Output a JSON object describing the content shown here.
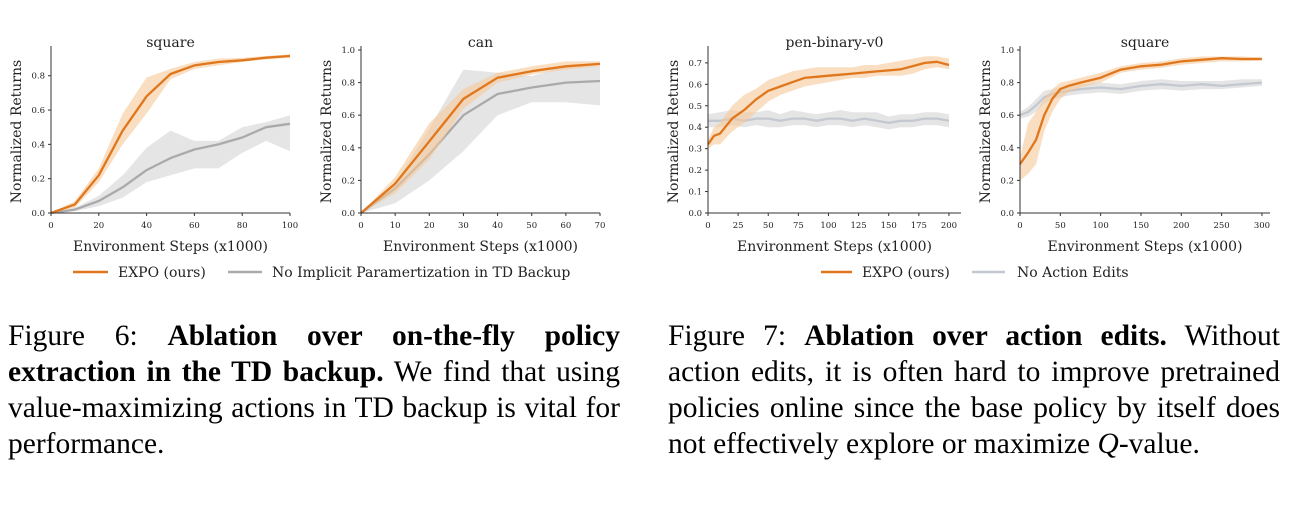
{
  "colors": {
    "expo": "#e0771d",
    "expo_band": "#f5c89a",
    "ablation": "#aaaaaa",
    "ablation_band": "#dcdcdc",
    "ablation7": "#c4c8d0"
  },
  "figure6": {
    "legend": {
      "expo": "EXPO (ours)",
      "ablation": "No Implicit Paramertization in TD Backup"
    },
    "caption": {
      "label": "Figure 6:",
      "bold": "Ablation over on-the-fly policy extraction in the TD backup.",
      "text": "We find that using value-maximizing actions in TD backup is vital for performance."
    }
  },
  "figure7": {
    "legend": {
      "expo": "EXPO (ours)",
      "ablation": "No Action Edits"
    },
    "caption": {
      "label": "Figure 7:",
      "bold": "Ablation over action edits.",
      "text": "Without action edits, it is often hard to improve pretrained policies online since the base policy by itself does not effectively explore or maximize",
      "q": "Q",
      "tail": "-value."
    }
  },
  "chart_data": [
    {
      "type": "line",
      "title": "square",
      "xlabel": "Environment Steps (x1000)",
      "ylabel": "Normalized Returns",
      "xlim": [
        0,
        100
      ],
      "ylim": [
        0,
        0.95
      ],
      "xticks": [
        0,
        20,
        40,
        60,
        80,
        100
      ],
      "xtick_labels": [
        "0",
        "20",
        "40",
        "60",
        "80",
        "100"
      ],
      "yticks": [
        0,
        0.2,
        0.4,
        0.6,
        0.8
      ],
      "ytick_labels": [
        "0.0",
        "0.2",
        "0.4",
        "0.6",
        "0.8"
      ],
      "series": [
        {
          "name": "EXPO (ours)",
          "x": [
            0,
            10,
            20,
            30,
            40,
            50,
            60,
            70,
            80,
            90,
            100
          ],
          "y": [
            0.0,
            0.05,
            0.22,
            0.48,
            0.68,
            0.81,
            0.86,
            0.88,
            0.89,
            0.905,
            0.915
          ],
          "upper": [
            0.0,
            0.07,
            0.26,
            0.58,
            0.79,
            0.84,
            0.88,
            0.9,
            0.905,
            0.915,
            0.925
          ],
          "lower": [
            0.0,
            0.03,
            0.18,
            0.4,
            0.58,
            0.78,
            0.84,
            0.86,
            0.88,
            0.895,
            0.905
          ]
        },
        {
          "name": "No Implicit Paramertization in TD Backup",
          "x": [
            0,
            10,
            20,
            30,
            40,
            50,
            60,
            70,
            80,
            90,
            100
          ],
          "y": [
            0.0,
            0.02,
            0.07,
            0.15,
            0.25,
            0.32,
            0.37,
            0.4,
            0.44,
            0.5,
            0.52
          ],
          "upper": [
            0.0,
            0.03,
            0.1,
            0.22,
            0.38,
            0.48,
            0.42,
            0.42,
            0.5,
            0.53,
            0.57
          ],
          "lower": [
            0.0,
            0.01,
            0.04,
            0.09,
            0.18,
            0.22,
            0.26,
            0.26,
            0.35,
            0.42,
            0.36
          ]
        }
      ]
    },
    {
      "type": "line",
      "title": "can",
      "xlabel": "Environment Steps (x1000)",
      "ylabel": "Normalized Returns",
      "xlim": [
        0,
        70
      ],
      "ylim": [
        0,
        1.0
      ],
      "xticks": [
        0,
        10,
        20,
        30,
        40,
        50,
        60,
        70
      ],
      "xtick_labels": [
        "0",
        "10",
        "20",
        "30",
        "40",
        "50",
        "60",
        "70"
      ],
      "yticks": [
        0,
        0.2,
        0.4,
        0.6,
        0.8,
        1.0
      ],
      "ytick_labels": [
        "0.0",
        "0.2",
        "0.4",
        "0.6",
        "0.8",
        "1.0"
      ],
      "series": [
        {
          "name": "EXPO (ours)",
          "x": [
            0,
            10,
            20,
            30,
            40,
            50,
            60,
            70
          ],
          "y": [
            0.0,
            0.18,
            0.44,
            0.7,
            0.83,
            0.87,
            0.9,
            0.915
          ],
          "upper": [
            0.0,
            0.22,
            0.55,
            0.76,
            0.86,
            0.9,
            0.93,
            0.93
          ],
          "lower": [
            0.0,
            0.12,
            0.33,
            0.64,
            0.8,
            0.85,
            0.88,
            0.9
          ]
        },
        {
          "name": "No Implicit Paramertization in TD Backup",
          "x": [
            0,
            10,
            20,
            30,
            40,
            50,
            60,
            70
          ],
          "y": [
            0.0,
            0.15,
            0.36,
            0.6,
            0.73,
            0.77,
            0.8,
            0.81
          ],
          "upper": [
            0.0,
            0.18,
            0.52,
            0.88,
            0.86,
            0.84,
            0.9,
            0.9
          ],
          "lower": [
            0.0,
            0.06,
            0.2,
            0.38,
            0.6,
            0.68,
            0.68,
            0.66
          ]
        }
      ]
    },
    {
      "type": "line",
      "title": "pen-binary-v0",
      "xlabel": "Environment Steps (x1000)",
      "ylabel": "Normalized Returns",
      "xlim": [
        0,
        210
      ],
      "ylim": [
        0,
        0.76
      ],
      "xticks": [
        0,
        25,
        50,
        75,
        100,
        125,
        150,
        175,
        200
      ],
      "xtick_labels": [
        "0",
        "25",
        "50",
        "75",
        "100",
        "125",
        "150",
        "175",
        "200"
      ],
      "yticks": [
        0,
        0.1,
        0.2,
        0.3,
        0.4,
        0.5,
        0.6,
        0.7
      ],
      "ytick_labels": [
        "0.0",
        "0.1",
        "0.2",
        "0.3",
        "0.4",
        "0.5",
        "0.6",
        "0.7"
      ],
      "series": [
        {
          "name": "EXPO (ours)",
          "x": [
            0,
            5,
            10,
            20,
            30,
            40,
            50,
            60,
            70,
            80,
            90,
            100,
            110,
            120,
            130,
            140,
            150,
            160,
            170,
            180,
            190,
            200
          ],
          "y": [
            0.32,
            0.36,
            0.37,
            0.44,
            0.48,
            0.53,
            0.57,
            0.59,
            0.61,
            0.63,
            0.635,
            0.64,
            0.645,
            0.65,
            0.655,
            0.66,
            0.665,
            0.67,
            0.685,
            0.7,
            0.705,
            0.69
          ],
          "upper": [
            0.34,
            0.4,
            0.42,
            0.5,
            0.55,
            0.58,
            0.62,
            0.64,
            0.66,
            0.67,
            0.68,
            0.68,
            0.68,
            0.68,
            0.69,
            0.69,
            0.7,
            0.71,
            0.72,
            0.73,
            0.73,
            0.72
          ],
          "lower": [
            0.3,
            0.32,
            0.32,
            0.38,
            0.42,
            0.47,
            0.52,
            0.55,
            0.57,
            0.59,
            0.6,
            0.61,
            0.62,
            0.63,
            0.63,
            0.64,
            0.64,
            0.64,
            0.65,
            0.67,
            0.68,
            0.67
          ]
        },
        {
          "name": "No Action Edits",
          "x": [
            0,
            10,
            20,
            30,
            40,
            50,
            60,
            70,
            80,
            90,
            100,
            110,
            120,
            130,
            140,
            150,
            160,
            170,
            180,
            190,
            200
          ],
          "y": [
            0.43,
            0.43,
            0.44,
            0.43,
            0.44,
            0.44,
            0.43,
            0.44,
            0.44,
            0.43,
            0.44,
            0.44,
            0.43,
            0.44,
            0.43,
            0.42,
            0.43,
            0.43,
            0.44,
            0.44,
            0.43
          ],
          "upper": [
            0.46,
            0.47,
            0.48,
            0.47,
            0.47,
            0.48,
            0.46,
            0.48,
            0.47,
            0.46,
            0.47,
            0.48,
            0.47,
            0.47,
            0.47,
            0.45,
            0.46,
            0.46,
            0.47,
            0.47,
            0.46
          ],
          "lower": [
            0.4,
            0.4,
            0.41,
            0.4,
            0.41,
            0.4,
            0.4,
            0.41,
            0.41,
            0.4,
            0.41,
            0.41,
            0.4,
            0.41,
            0.4,
            0.39,
            0.4,
            0.4,
            0.41,
            0.41,
            0.4
          ]
        }
      ]
    },
    {
      "type": "line",
      "title": "square",
      "xlabel": "Environment Steps (x1000)",
      "ylabel": "Normalized Returns",
      "xlim": [
        0,
        310
      ],
      "ylim": [
        0,
        1.0
      ],
      "xticks": [
        0,
        50,
        100,
        150,
        200,
        250,
        300
      ],
      "xtick_labels": [
        "0",
        "50",
        "100",
        "150",
        "200",
        "250",
        "300"
      ],
      "yticks": [
        0,
        0.2,
        0.4,
        0.6,
        0.8,
        1.0
      ],
      "ytick_labels": [
        "0.0",
        "0.2",
        "0.4",
        "0.6",
        "0.8",
        "1.0"
      ],
      "series": [
        {
          "name": "EXPO (ours)",
          "x": [
            0,
            10,
            20,
            30,
            40,
            50,
            60,
            75,
            100,
            125,
            150,
            175,
            200,
            225,
            250,
            275,
            300
          ],
          "y": [
            0.3,
            0.37,
            0.45,
            0.6,
            0.7,
            0.76,
            0.78,
            0.8,
            0.83,
            0.88,
            0.9,
            0.91,
            0.93,
            0.94,
            0.95,
            0.945,
            0.945
          ],
          "upper": [
            0.34,
            0.55,
            0.62,
            0.7,
            0.76,
            0.8,
            0.81,
            0.83,
            0.86,
            0.9,
            0.92,
            0.93,
            0.95,
            0.96,
            0.96,
            0.96,
            0.955
          ],
          "lower": [
            0.2,
            0.24,
            0.3,
            0.5,
            0.62,
            0.7,
            0.74,
            0.77,
            0.8,
            0.86,
            0.88,
            0.89,
            0.91,
            0.92,
            0.93,
            0.93,
            0.935
          ]
        },
        {
          "name": "No Action Edits",
          "x": [
            0,
            10,
            20,
            30,
            40,
            50,
            60,
            75,
            100,
            125,
            150,
            175,
            200,
            225,
            250,
            275,
            300
          ],
          "y": [
            0.6,
            0.62,
            0.66,
            0.71,
            0.73,
            0.74,
            0.75,
            0.76,
            0.77,
            0.76,
            0.78,
            0.79,
            0.78,
            0.79,
            0.78,
            0.79,
            0.8
          ],
          "upper": [
            0.62,
            0.65,
            0.7,
            0.75,
            0.76,
            0.77,
            0.78,
            0.79,
            0.8,
            0.79,
            0.81,
            0.82,
            0.81,
            0.81,
            0.81,
            0.82,
            0.82
          ],
          "lower": [
            0.58,
            0.59,
            0.62,
            0.67,
            0.7,
            0.71,
            0.72,
            0.73,
            0.74,
            0.73,
            0.75,
            0.76,
            0.75,
            0.76,
            0.76,
            0.77,
            0.78
          ]
        }
      ]
    }
  ]
}
